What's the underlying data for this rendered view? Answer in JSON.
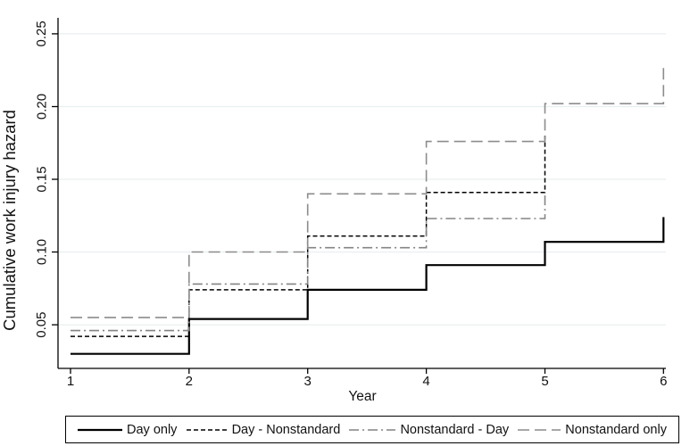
{
  "chart_data": {
    "type": "line",
    "subtype": "step",
    "title": "",
    "xlabel": "Year",
    "ylabel": "Cumulative work injury hazard",
    "xlim": [
      0.895,
      6.02
    ],
    "ylim": [
      0.02,
      0.261
    ],
    "grid": "horizontal",
    "legend_position": "bottom",
    "x_ticks": [
      {
        "value": 1,
        "label": "1"
      },
      {
        "value": 2,
        "label": "2"
      },
      {
        "value": 3,
        "label": "3"
      },
      {
        "value": 4,
        "label": "4"
      },
      {
        "value": 5,
        "label": "5"
      },
      {
        "value": 6,
        "label": "6"
      }
    ],
    "y_ticks": [
      {
        "value": 0.05,
        "label": "0.05"
      },
      {
        "value": 0.1,
        "label": "0.10"
      },
      {
        "value": 0.15,
        "label": "0.15"
      },
      {
        "value": 0.2,
        "label": "0.20"
      },
      {
        "value": 0.25,
        "label": "0.25"
      }
    ],
    "series": [
      {
        "name": "Day only",
        "color": "#000000",
        "dash": "solid",
        "width": 2.2,
        "points": [
          [
            1,
            0.03
          ],
          [
            2,
            0.03
          ],
          [
            2,
            0.054
          ],
          [
            3,
            0.054
          ],
          [
            3,
            0.074
          ],
          [
            4,
            0.074
          ],
          [
            4,
            0.091
          ],
          [
            5,
            0.091
          ],
          [
            5,
            0.107
          ],
          [
            6,
            0.107
          ],
          [
            6,
            0.124
          ]
        ]
      },
      {
        "name": "Day - Nonstandard",
        "color": "#000000",
        "dash": "shortdash",
        "width": 1.5,
        "points": [
          [
            1,
            0.042
          ],
          [
            2,
            0.042
          ],
          [
            2,
            0.074
          ],
          [
            3,
            0.074
          ],
          [
            3,
            0.111
          ],
          [
            4,
            0.111
          ],
          [
            4,
            0.141
          ],
          [
            5,
            0.141
          ],
          [
            5,
            0.18
          ]
        ]
      },
      {
        "name": "Nonstandard - Day",
        "color": "#848484",
        "dash": "dashdot",
        "width": 1.6,
        "points": [
          [
            1,
            0.046
          ],
          [
            2,
            0.046
          ],
          [
            2,
            0.078
          ],
          [
            3,
            0.078
          ],
          [
            3,
            0.103
          ],
          [
            4,
            0.103
          ],
          [
            4,
            0.123
          ],
          [
            5,
            0.123
          ],
          [
            5,
            0.141
          ]
        ]
      },
      {
        "name": "Nonstandard only",
        "color": "#8c8c8c",
        "dash": "longdash",
        "width": 1.6,
        "points": [
          [
            1,
            0.055
          ],
          [
            2,
            0.055
          ],
          [
            2,
            0.1
          ],
          [
            3,
            0.1
          ],
          [
            3,
            0.14
          ],
          [
            4,
            0.14
          ],
          [
            4,
            0.176
          ],
          [
            5,
            0.176
          ],
          [
            5,
            0.202
          ],
          [
            6,
            0.202
          ],
          [
            6,
            0.23
          ]
        ]
      }
    ]
  },
  "colors": {
    "grid": "#e9eff0",
    "axis": "#000000",
    "text": "#111111"
  }
}
